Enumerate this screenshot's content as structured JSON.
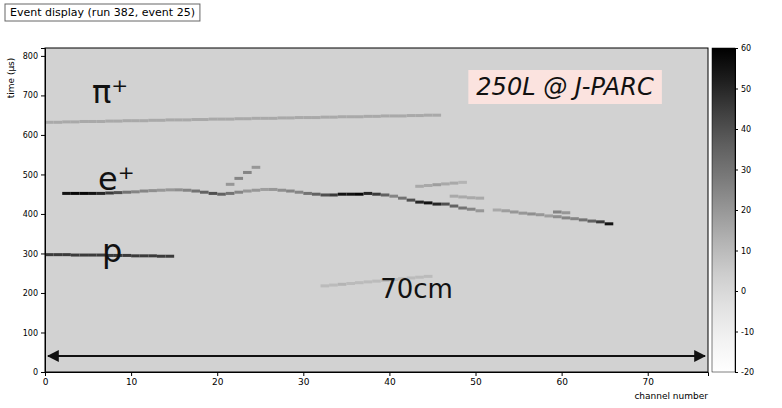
{
  "chart_data": {
    "type": "heatmap",
    "title": "Event display (run 382, event 25)",
    "x_label": "channel number",
    "y_label": "time (μs)",
    "xlim": [
      0,
      77
    ],
    "ylim": [
      0,
      820
    ],
    "xticks": [
      0,
      10,
      20,
      30,
      40,
      50,
      60,
      70
    ],
    "yticks": [
      0,
      100,
      200,
      300,
      400,
      500,
      600,
      700,
      800
    ],
    "color_range": [
      -20,
      60
    ],
    "color_ticks": [
      -20,
      -10,
      0,
      10,
      20,
      30,
      40,
      50,
      60
    ],
    "annotations": [
      "π⁺",
      "e⁺",
      "p",
      "250L @ J-PARC",
      "70cm"
    ],
    "hits": [
      [
        0,
        632,
        15
      ],
      [
        1,
        632,
        15
      ],
      [
        2,
        633,
        15
      ],
      [
        3,
        633,
        15
      ],
      [
        4,
        634,
        15
      ],
      [
        5,
        634,
        15
      ],
      [
        6,
        634,
        15
      ],
      [
        7,
        635,
        15
      ],
      [
        8,
        635,
        15
      ],
      [
        9,
        636,
        15
      ],
      [
        10,
        636,
        15
      ],
      [
        11,
        636,
        15
      ],
      [
        12,
        637,
        15
      ],
      [
        13,
        637,
        15
      ],
      [
        14,
        638,
        15
      ],
      [
        15,
        638,
        15
      ],
      [
        16,
        638,
        15
      ],
      [
        17,
        639,
        15
      ],
      [
        18,
        639,
        15
      ],
      [
        19,
        640,
        15
      ],
      [
        20,
        640,
        15
      ],
      [
        21,
        640,
        15
      ],
      [
        22,
        641,
        15
      ],
      [
        23,
        641,
        15
      ],
      [
        24,
        642,
        15
      ],
      [
        25,
        642,
        15
      ],
      [
        26,
        642,
        15
      ],
      [
        27,
        643,
        15
      ],
      [
        28,
        643,
        15
      ],
      [
        29,
        644,
        15
      ],
      [
        30,
        644,
        15
      ],
      [
        31,
        644,
        15
      ],
      [
        32,
        645,
        15
      ],
      [
        33,
        645,
        15
      ],
      [
        34,
        646,
        15
      ],
      [
        35,
        646,
        15
      ],
      [
        36,
        646,
        15
      ],
      [
        37,
        647,
        15
      ],
      [
        38,
        647,
        15
      ],
      [
        39,
        648,
        15
      ],
      [
        40,
        648,
        15
      ],
      [
        41,
        648,
        15
      ],
      [
        42,
        649,
        15
      ],
      [
        43,
        649,
        15
      ],
      [
        44,
        650,
        15
      ],
      [
        45,
        650,
        15
      ],
      [
        0,
        297,
        45
      ],
      [
        1,
        297,
        45
      ],
      [
        2,
        297,
        45
      ],
      [
        3,
        296,
        45
      ],
      [
        4,
        296,
        45
      ],
      [
        5,
        296,
        45
      ],
      [
        6,
        296,
        45
      ],
      [
        7,
        295,
        45
      ],
      [
        8,
        295,
        45
      ],
      [
        9,
        295,
        45
      ],
      [
        10,
        294,
        45
      ],
      [
        11,
        294,
        45
      ],
      [
        12,
        294,
        45
      ],
      [
        13,
        293,
        45
      ],
      [
        14,
        293,
        45
      ],
      [
        2,
        452,
        55
      ],
      [
        3,
        452,
        58
      ],
      [
        4,
        452,
        58
      ],
      [
        5,
        452,
        55
      ],
      [
        6,
        452,
        50
      ],
      [
        7,
        453,
        45
      ],
      [
        8,
        454,
        40
      ],
      [
        9,
        455,
        30
      ],
      [
        10,
        456,
        25
      ],
      [
        11,
        458,
        25
      ],
      [
        12,
        459,
        22
      ],
      [
        13,
        460,
        20
      ],
      [
        14,
        461,
        20
      ],
      [
        15,
        461,
        22
      ],
      [
        16,
        460,
        25
      ],
      [
        17,
        458,
        30
      ],
      [
        18,
        455,
        35
      ],
      [
        19,
        452,
        40
      ],
      [
        20,
        450,
        35
      ],
      [
        21,
        452,
        30
      ],
      [
        22,
        455,
        25
      ],
      [
        23,
        458,
        20
      ],
      [
        24,
        460,
        20
      ],
      [
        25,
        462,
        18
      ],
      [
        26,
        462,
        20
      ],
      [
        27,
        460,
        22
      ],
      [
        28,
        458,
        25
      ],
      [
        29,
        455,
        25
      ],
      [
        30,
        452,
        30
      ],
      [
        31,
        450,
        35
      ],
      [
        32,
        448,
        40
      ],
      [
        33,
        448,
        45
      ],
      [
        34,
        450,
        55
      ],
      [
        35,
        450,
        55
      ],
      [
        36,
        450,
        58
      ],
      [
        37,
        452,
        50
      ],
      [
        38,
        450,
        45
      ],
      [
        39,
        448,
        35
      ],
      [
        40,
        445,
        25
      ],
      [
        41,
        440,
        30
      ],
      [
        42,
        435,
        40
      ],
      [
        43,
        430,
        50
      ],
      [
        44,
        428,
        55
      ],
      [
        45,
        425,
        50
      ],
      [
        46,
        425,
        40
      ],
      [
        47,
        420,
        35
      ],
      [
        48,
        415,
        30
      ],
      [
        49,
        412,
        25
      ],
      [
        50,
        408,
        20
      ],
      [
        43,
        470,
        15
      ],
      [
        44,
        472,
        15
      ],
      [
        45,
        474,
        18
      ],
      [
        46,
        476,
        15
      ],
      [
        47,
        478,
        15
      ],
      [
        48,
        480,
        12
      ],
      [
        52,
        410,
        15
      ],
      [
        53,
        408,
        18
      ],
      [
        54,
        405,
        20
      ],
      [
        55,
        402,
        20
      ],
      [
        56,
        400,
        22
      ],
      [
        57,
        398,
        20
      ],
      [
        58,
        395,
        18
      ],
      [
        59,
        393,
        22
      ],
      [
        60,
        390,
        25
      ],
      [
        61,
        388,
        25
      ],
      [
        62,
        385,
        30
      ],
      [
        63,
        382,
        35
      ],
      [
        64,
        380,
        45
      ],
      [
        65,
        375,
        55
      ],
      [
        59,
        405,
        25
      ],
      [
        60,
        403,
        20
      ],
      [
        21,
        475,
        20
      ],
      [
        22,
        490,
        25
      ],
      [
        23,
        505,
        25
      ],
      [
        24,
        518,
        20
      ],
      [
        47,
        445,
        15
      ],
      [
        48,
        443,
        15
      ],
      [
        49,
        441,
        15
      ],
      [
        50,
        440,
        15
      ],
      [
        32,
        218,
        10
      ],
      [
        33,
        220,
        10
      ],
      [
        34,
        222,
        12
      ],
      [
        35,
        224,
        10
      ],
      [
        36,
        226,
        10
      ],
      [
        37,
        228,
        10
      ],
      [
        38,
        230,
        10
      ],
      [
        39,
        232,
        10
      ],
      [
        40,
        234,
        10
      ],
      [
        41,
        236,
        10
      ],
      [
        42,
        238,
        10
      ],
      [
        43,
        240,
        10
      ],
      [
        44,
        242,
        10
      ]
    ]
  }
}
